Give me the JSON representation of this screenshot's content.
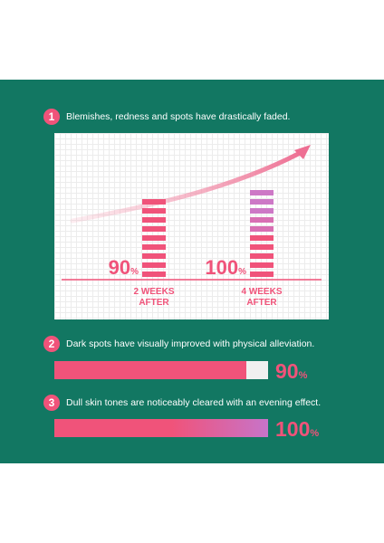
{
  "steps": [
    {
      "num": "1",
      "text": "Blemishes, redness and spots have drastically  faded."
    },
    {
      "num": "2",
      "text": "Dark spots have visually improved with physical alleviation."
    },
    {
      "num": "3",
      "text": "Dull skin tones are noticeably cleared with an evening effect."
    }
  ],
  "chart_data": {
    "type": "bar",
    "categories": [
      "2 WEEKS AFTER",
      "4 WEEKS AFTER"
    ],
    "series": [
      {
        "values": [
          90,
          100
        ]
      }
    ],
    "value_labels": [
      {
        "num": "90",
        "unit": "%"
      },
      {
        "num": "100",
        "unit": "%"
      }
    ],
    "colors": [
      "#f0537a",
      "#d86fb3"
    ]
  },
  "bars": [
    {
      "value": 90,
      "num": "90",
      "unit": "%"
    },
    {
      "value": 100,
      "num": "100",
      "unit": "%"
    }
  ],
  "colors": {
    "background": "#127762",
    "accent": "#f0537a",
    "purple": "#c774c9"
  }
}
